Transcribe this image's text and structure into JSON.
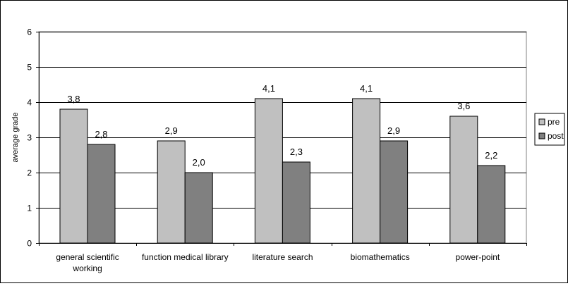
{
  "chart_data": {
    "type": "bar",
    "ylabel": "average grade",
    "xlabel": "",
    "title": "",
    "ylim": [
      0,
      6
    ],
    "yticks": [
      0,
      1,
      2,
      3,
      4,
      5,
      6
    ],
    "grid": true,
    "legend_position": "right",
    "categories": [
      [
        "general scientific",
        "working"
      ],
      [
        "function medical library"
      ],
      [
        "literature search"
      ],
      [
        "biomathematics"
      ],
      [
        "power-point"
      ]
    ],
    "series": [
      {
        "name": "pre",
        "color": "#c0c0c0",
        "values": [
          3.8,
          2.9,
          4.1,
          4.1,
          3.6
        ],
        "labels": [
          "3,8",
          "2,9",
          "4,1",
          "4,1",
          "3,6"
        ]
      },
      {
        "name": "post",
        "color": "#808080",
        "values": [
          2.8,
          2.0,
          2.3,
          2.9,
          2.2
        ],
        "labels": [
          "2,8",
          "2,0",
          "2,3",
          "2,9",
          "2,2"
        ]
      }
    ]
  }
}
